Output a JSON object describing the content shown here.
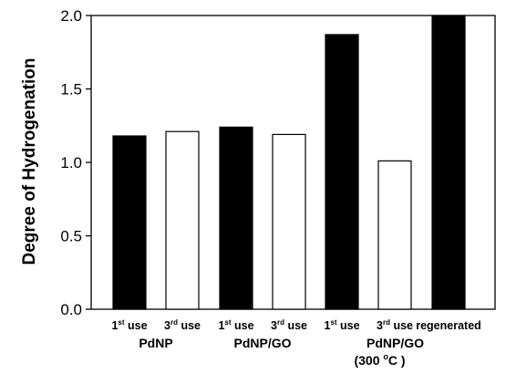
{
  "chart_data": {
    "type": "bar",
    "ylabel": "Degree of Hydrogenation",
    "ylim": [
      0,
      2.0
    ],
    "yticks": [
      "0.0",
      "0.5",
      "1.0",
      "1.5",
      "2.0"
    ],
    "grid": false,
    "categories": [
      {
        "base": "1",
        "sup": "st",
        "rest": " use"
      },
      {
        "base": "3",
        "sup": "rd",
        "rest": " use"
      },
      {
        "base": "1",
        "sup": "st",
        "rest": " use"
      },
      {
        "base": "3",
        "sup": "rd",
        "rest": " use"
      },
      {
        "base": "1",
        "sup": "st",
        "rest": " use"
      },
      {
        "base": "3",
        "sup": "rd",
        "rest": " use"
      },
      {
        "base": "regenerated",
        "sup": "",
        "rest": ""
      }
    ],
    "values": [
      1.18,
      1.21,
      1.24,
      1.19,
      1.87,
      1.01,
      2.0
    ],
    "fills": [
      "#000000",
      "#ffffff",
      "#000000",
      "#ffffff",
      "#000000",
      "#ffffff",
      "#000000"
    ],
    "groups": [
      {
        "label": "PdNP",
        "line2": null,
        "members": [
          0,
          1
        ]
      },
      {
        "label": "PdNP/GO",
        "line2": null,
        "members": [
          2,
          3
        ]
      },
      {
        "label": "PdNP/GO",
        "line2": {
          "pre": "(300 ",
          "sup": "o",
          "post": "C )"
        },
        "members": [
          4,
          5,
          6
        ]
      }
    ]
  }
}
